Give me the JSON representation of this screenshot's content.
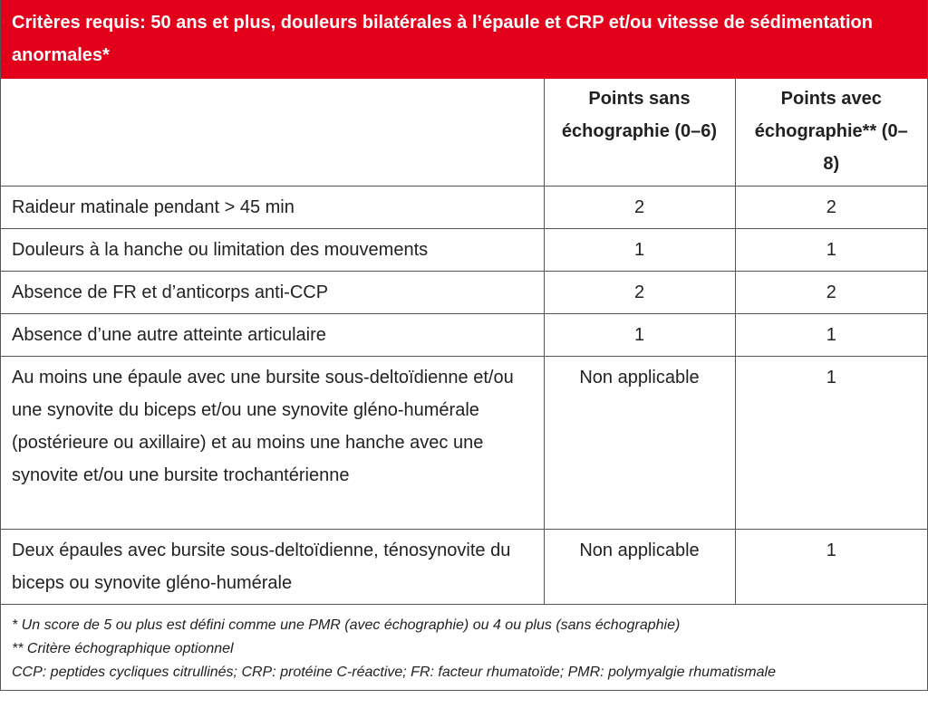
{
  "header": {
    "title": "Critères requis: 50 ans et plus, douleurs bilatérales à l’épaule et CRP et/ou vitesse de sédimentation anormales*"
  },
  "table": {
    "columns": [
      "Points sans échographie (0–6)",
      "Points avec échographie** (0–8)"
    ],
    "rows": [
      [
        "Raideur matinale pendant > 45 min",
        2,
        2
      ],
      [
        "Douleurs à la hanche ou limitation des mouvements",
        1,
        1
      ],
      [
        "Absence de FR et d’anticorps anti-CCP",
        2,
        2
      ],
      [
        "Absence d’une autre atteinte articulaire",
        1,
        1
      ],
      [
        "Au moins une épaule avec une bursite sous-deltoïdienne et/ou une synovite du biceps et/ou une synovite gléno-humérale (postérieure ou axillaire) et au moins une hanche avec une synovite et/ou une bursite trochantérienne",
        "Non applicable",
        1
      ],
      [
        "Deux épaules avec bursite sous-deltoïdienne, ténosynovite du biceps ou synovite gléno-humérale",
        "Non applicable",
        1
      ]
    ]
  },
  "footnotes": [
    "* Un score de 5 ou plus est défini comme une PMR (avec échographie) ou 4 ou plus (sans échographie)",
    "** Critère échographique optionnel",
    "CCP: peptides cycliques citrullinés; CRP: protéine C-réactive; FR: facteur rhumatoïde; PMR: polymyalgie rhumatismale"
  ]
}
